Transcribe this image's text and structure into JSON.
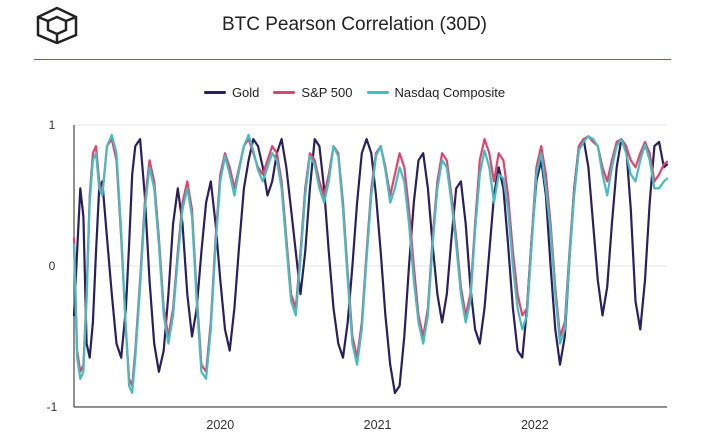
{
  "title": "BTC Pearson Correlation (30D)",
  "colors": {
    "Gold": "#2a1f5e",
    "S&P 500": "#e0446a",
    "Nasdaq Composite": "#45bcc0",
    "rule": "#8e44ad"
  },
  "logo_icon": "cube-logo-icon",
  "chart_data": {
    "type": "line",
    "title": "BTC Pearson Correlation (30D)",
    "xlabel": "",
    "ylabel": "",
    "ylim": [
      -1,
      1
    ],
    "yticks": [
      1,
      0,
      -1
    ],
    "xticks": [
      {
        "label": "2020",
        "x": 2020.0
      },
      {
        "label": "2021",
        "x": 2021.0
      },
      {
        "label": "2022",
        "x": 2022.0
      }
    ],
    "xlim": [
      2019.07,
      2022.84
    ],
    "grid": "horizontal",
    "legend": "top-center",
    "series": [
      {
        "name": "Gold",
        "x": [
          2019.07,
          2019.09,
          2019.11,
          2019.13,
          2019.15,
          2019.17,
          2019.19,
          2019.21,
          2019.23,
          2019.25,
          2019.28,
          2019.31,
          2019.34,
          2019.37,
          2019.4,
          2019.42,
          2019.44,
          2019.46,
          2019.49,
          2019.52,
          2019.55,
          2019.58,
          2019.61,
          2019.64,
          2019.67,
          2019.7,
          2019.73,
          2019.76,
          2019.79,
          2019.82,
          2019.85,
          2019.88,
          2019.91,
          2019.94,
          2019.97,
          2020.0,
          2020.03,
          2020.06,
          2020.09,
          2020.12,
          2020.15,
          2020.18,
          2020.21,
          2020.24,
          2020.27,
          2020.3,
          2020.33,
          2020.36,
          2020.39,
          2020.42,
          2020.45,
          2020.48,
          2020.51,
          2020.54,
          2020.57,
          2020.6,
          2020.63,
          2020.66,
          2020.69,
          2020.72,
          2020.75,
          2020.78,
          2020.81,
          2020.84,
          2020.87,
          2020.9,
          2020.93,
          2020.96,
          2020.99,
          2021.02,
          2021.05,
          2021.08,
          2021.11,
          2021.14,
          2021.17,
          2021.2,
          2021.23,
          2021.26,
          2021.29,
          2021.32,
          2021.35,
          2021.38,
          2021.41,
          2021.44,
          2021.47,
          2021.5,
          2021.53,
          2021.56,
          2021.59,
          2021.62,
          2021.65,
          2021.68,
          2021.71,
          2021.74,
          2021.77,
          2021.8,
          2021.83,
          2021.86,
          2021.89,
          2021.92,
          2021.95,
          2021.98,
          2022.01,
          2022.04,
          2022.07,
          2022.1,
          2022.13,
          2022.16,
          2022.19,
          2022.22,
          2022.25,
          2022.28,
          2022.31,
          2022.34,
          2022.37,
          2022.4,
          2022.43,
          2022.46,
          2022.49,
          2022.52,
          2022.55,
          2022.58,
          2022.61,
          2022.64,
          2022.67,
          2022.7,
          2022.73,
          2022.76,
          2022.79,
          2022.82,
          2022.84
        ],
        "values": [
          -0.35,
          0.1,
          0.55,
          0.35,
          -0.55,
          -0.65,
          -0.4,
          0.1,
          0.55,
          0.6,
          0.2,
          -0.2,
          -0.55,
          -0.65,
          -0.3,
          0.15,
          0.65,
          0.85,
          0.9,
          0.5,
          -0.1,
          -0.55,
          -0.75,
          -0.6,
          -0.2,
          0.3,
          0.55,
          0.3,
          -0.2,
          -0.5,
          -0.3,
          0.1,
          0.45,
          0.6,
          0.3,
          -0.1,
          -0.45,
          -0.6,
          -0.3,
          0.15,
          0.55,
          0.75,
          0.9,
          0.85,
          0.7,
          0.5,
          0.6,
          0.8,
          0.9,
          0.7,
          0.4,
          0.1,
          -0.2,
          0.1,
          0.55,
          0.9,
          0.85,
          0.55,
          0.1,
          -0.3,
          -0.55,
          -0.65,
          -0.4,
          0.0,
          0.45,
          0.8,
          0.9,
          0.8,
          0.5,
          0.1,
          -0.35,
          -0.7,
          -0.9,
          -0.85,
          -0.5,
          0.0,
          0.45,
          0.75,
          0.8,
          0.55,
          0.15,
          -0.2,
          -0.4,
          -0.2,
          0.2,
          0.55,
          0.6,
          0.3,
          -0.15,
          -0.45,
          -0.55,
          -0.3,
          0.1,
          0.5,
          0.7,
          0.55,
          0.15,
          -0.3,
          -0.6,
          -0.65,
          -0.3,
          0.2,
          0.6,
          0.75,
          0.5,
          0.0,
          -0.45,
          -0.7,
          -0.5,
          0.05,
          0.55,
          0.85,
          0.9,
          0.7,
          0.3,
          -0.1,
          -0.35,
          -0.15,
          0.3,
          0.7,
          0.9,
          0.85,
          0.4,
          -0.25,
          -0.45,
          -0.1,
          0.45,
          0.85,
          0.88,
          0.7,
          0.72
        ]
      },
      {
        "name": "S&P 500",
        "x": [
          2019.07,
          2019.09,
          2019.11,
          2019.13,
          2019.15,
          2019.17,
          2019.19,
          2019.21,
          2019.23,
          2019.25,
          2019.28,
          2019.31,
          2019.34,
          2019.37,
          2019.4,
          2019.42,
          2019.44,
          2019.46,
          2019.49,
          2019.52,
          2019.55,
          2019.58,
          2019.61,
          2019.64,
          2019.67,
          2019.7,
          2019.73,
          2019.76,
          2019.79,
          2019.82,
          2019.85,
          2019.88,
          2019.91,
          2019.94,
          2019.97,
          2020.0,
          2020.03,
          2020.06,
          2020.09,
          2020.12,
          2020.15,
          2020.18,
          2020.21,
          2020.24,
          2020.27,
          2020.3,
          2020.33,
          2020.36,
          2020.39,
          2020.42,
          2020.45,
          2020.48,
          2020.51,
          2020.54,
          2020.57,
          2020.6,
          2020.63,
          2020.66,
          2020.69,
          2020.72,
          2020.75,
          2020.78,
          2020.81,
          2020.84,
          2020.87,
          2020.9,
          2020.93,
          2020.96,
          2020.99,
          2021.02,
          2021.05,
          2021.08,
          2021.11,
          2021.14,
          2021.17,
          2021.2,
          2021.23,
          2021.26,
          2021.29,
          2021.32,
          2021.35,
          2021.38,
          2021.41,
          2021.44,
          2021.47,
          2021.5,
          2021.53,
          2021.56,
          2021.59,
          2021.62,
          2021.65,
          2021.68,
          2021.71,
          2021.74,
          2021.77,
          2021.8,
          2021.83,
          2021.86,
          2021.89,
          2021.92,
          2021.95,
          2021.98,
          2022.01,
          2022.04,
          2022.07,
          2022.1,
          2022.13,
          2022.16,
          2022.19,
          2022.22,
          2022.25,
          2022.28,
          2022.31,
          2022.34,
          2022.37,
          2022.4,
          2022.43,
          2022.46,
          2022.49,
          2022.52,
          2022.55,
          2022.58,
          2022.61,
          2022.64,
          2022.67,
          2022.7,
          2022.73,
          2022.76,
          2022.79,
          2022.82,
          2022.84
        ],
        "values": [
          0.2,
          -0.6,
          -0.75,
          -0.7,
          -0.2,
          0.5,
          0.8,
          0.85,
          0.6,
          0.5,
          0.85,
          0.9,
          0.75,
          0.2,
          -0.45,
          -0.8,
          -0.85,
          -0.6,
          -0.1,
          0.45,
          0.75,
          0.6,
          0.2,
          -0.3,
          -0.5,
          -0.3,
          0.1,
          0.45,
          0.6,
          0.4,
          -0.2,
          -0.7,
          -0.75,
          -0.4,
          0.2,
          0.65,
          0.8,
          0.7,
          0.55,
          0.7,
          0.85,
          0.9,
          0.8,
          0.7,
          0.65,
          0.75,
          0.85,
          0.8,
          0.6,
          0.2,
          -0.2,
          -0.3,
          0.1,
          0.55,
          0.8,
          0.75,
          0.6,
          0.5,
          0.65,
          0.85,
          0.8,
          0.45,
          -0.05,
          -0.5,
          -0.65,
          -0.4,
          0.1,
          0.55,
          0.8,
          0.85,
          0.7,
          0.5,
          0.65,
          0.8,
          0.7,
          0.4,
          0.0,
          -0.35,
          -0.5,
          -0.3,
          0.2,
          0.6,
          0.8,
          0.75,
          0.5,
          0.2,
          -0.15,
          -0.35,
          -0.2,
          0.3,
          0.75,
          0.9,
          0.8,
          0.6,
          0.8,
          0.75,
          0.5,
          0.1,
          -0.2,
          -0.35,
          -0.3,
          0.2,
          0.7,
          0.85,
          0.65,
          0.3,
          -0.15,
          -0.5,
          -0.4,
          0.1,
          0.55,
          0.85,
          0.9,
          0.92,
          0.88,
          0.85,
          0.7,
          0.6,
          0.75,
          0.88,
          0.9,
          0.85,
          0.75,
          0.7,
          0.8,
          0.88,
          0.8,
          0.6,
          0.65,
          0.72,
          0.74
        ]
      },
      {
        "name": "Nasdaq Composite",
        "x": [
          2019.07,
          2019.09,
          2019.11,
          2019.13,
          2019.15,
          2019.17,
          2019.19,
          2019.21,
          2019.23,
          2019.25,
          2019.28,
          2019.31,
          2019.34,
          2019.37,
          2019.4,
          2019.42,
          2019.44,
          2019.46,
          2019.49,
          2019.52,
          2019.55,
          2019.58,
          2019.61,
          2019.64,
          2019.67,
          2019.7,
          2019.73,
          2019.76,
          2019.79,
          2019.82,
          2019.85,
          2019.88,
          2019.91,
          2019.94,
          2019.97,
          2020.0,
          2020.03,
          2020.06,
          2020.09,
          2020.12,
          2020.15,
          2020.18,
          2020.21,
          2020.24,
          2020.27,
          2020.3,
          2020.33,
          2020.36,
          2020.39,
          2020.42,
          2020.45,
          2020.48,
          2020.51,
          2020.54,
          2020.57,
          2020.6,
          2020.63,
          2020.66,
          2020.69,
          2020.72,
          2020.75,
          2020.78,
          2020.81,
          2020.84,
          2020.87,
          2020.9,
          2020.93,
          2020.96,
          2020.99,
          2021.02,
          2021.05,
          2021.08,
          2021.11,
          2021.14,
          2021.17,
          2021.2,
          2021.23,
          2021.26,
          2021.29,
          2021.32,
          2021.35,
          2021.38,
          2021.41,
          2021.44,
          2021.47,
          2021.5,
          2021.53,
          2021.56,
          2021.59,
          2021.62,
          2021.65,
          2021.68,
          2021.71,
          2021.74,
          2021.77,
          2021.8,
          2021.83,
          2021.86,
          2021.89,
          2021.92,
          2021.95,
          2021.98,
          2022.01,
          2022.04,
          2022.07,
          2022.1,
          2022.13,
          2022.16,
          2022.19,
          2022.22,
          2022.25,
          2022.28,
          2022.31,
          2022.34,
          2022.37,
          2022.4,
          2022.43,
          2022.46,
          2022.49,
          2022.52,
          2022.55,
          2022.58,
          2022.61,
          2022.64,
          2022.67,
          2022.7,
          2022.73,
          2022.76,
          2022.79,
          2022.82,
          2022.84
        ],
        "values": [
          0.15,
          -0.65,
          -0.8,
          -0.75,
          -0.25,
          0.45,
          0.75,
          0.8,
          0.55,
          0.5,
          0.85,
          0.93,
          0.8,
          0.25,
          -0.45,
          -0.85,
          -0.9,
          -0.65,
          -0.15,
          0.4,
          0.7,
          0.55,
          0.15,
          -0.35,
          -0.55,
          -0.35,
          0.05,
          0.4,
          0.55,
          0.35,
          -0.25,
          -0.75,
          -0.8,
          -0.45,
          0.15,
          0.6,
          0.78,
          0.65,
          0.5,
          0.68,
          0.85,
          0.93,
          0.82,
          0.68,
          0.6,
          0.7,
          0.8,
          0.75,
          0.55,
          0.15,
          -0.25,
          -0.35,
          0.05,
          0.5,
          0.78,
          0.72,
          0.55,
          0.45,
          0.6,
          0.85,
          0.78,
          0.4,
          -0.1,
          -0.55,
          -0.7,
          -0.45,
          0.05,
          0.5,
          0.78,
          0.85,
          0.68,
          0.45,
          0.55,
          0.7,
          0.6,
          0.3,
          -0.1,
          -0.4,
          -0.55,
          -0.35,
          0.15,
          0.55,
          0.75,
          0.7,
          0.45,
          0.15,
          -0.2,
          -0.4,
          -0.25,
          0.25,
          0.65,
          0.82,
          0.7,
          0.45,
          0.65,
          0.62,
          0.4,
          0.0,
          -0.3,
          -0.45,
          -0.35,
          0.15,
          0.65,
          0.8,
          0.55,
          0.25,
          -0.2,
          -0.55,
          -0.45,
          0.05,
          0.5,
          0.82,
          0.88,
          0.92,
          0.9,
          0.85,
          0.65,
          0.5,
          0.7,
          0.85,
          0.9,
          0.8,
          0.65,
          0.6,
          0.75,
          0.86,
          0.75,
          0.55,
          0.55,
          0.6,
          0.62
        ]
      }
    ]
  }
}
